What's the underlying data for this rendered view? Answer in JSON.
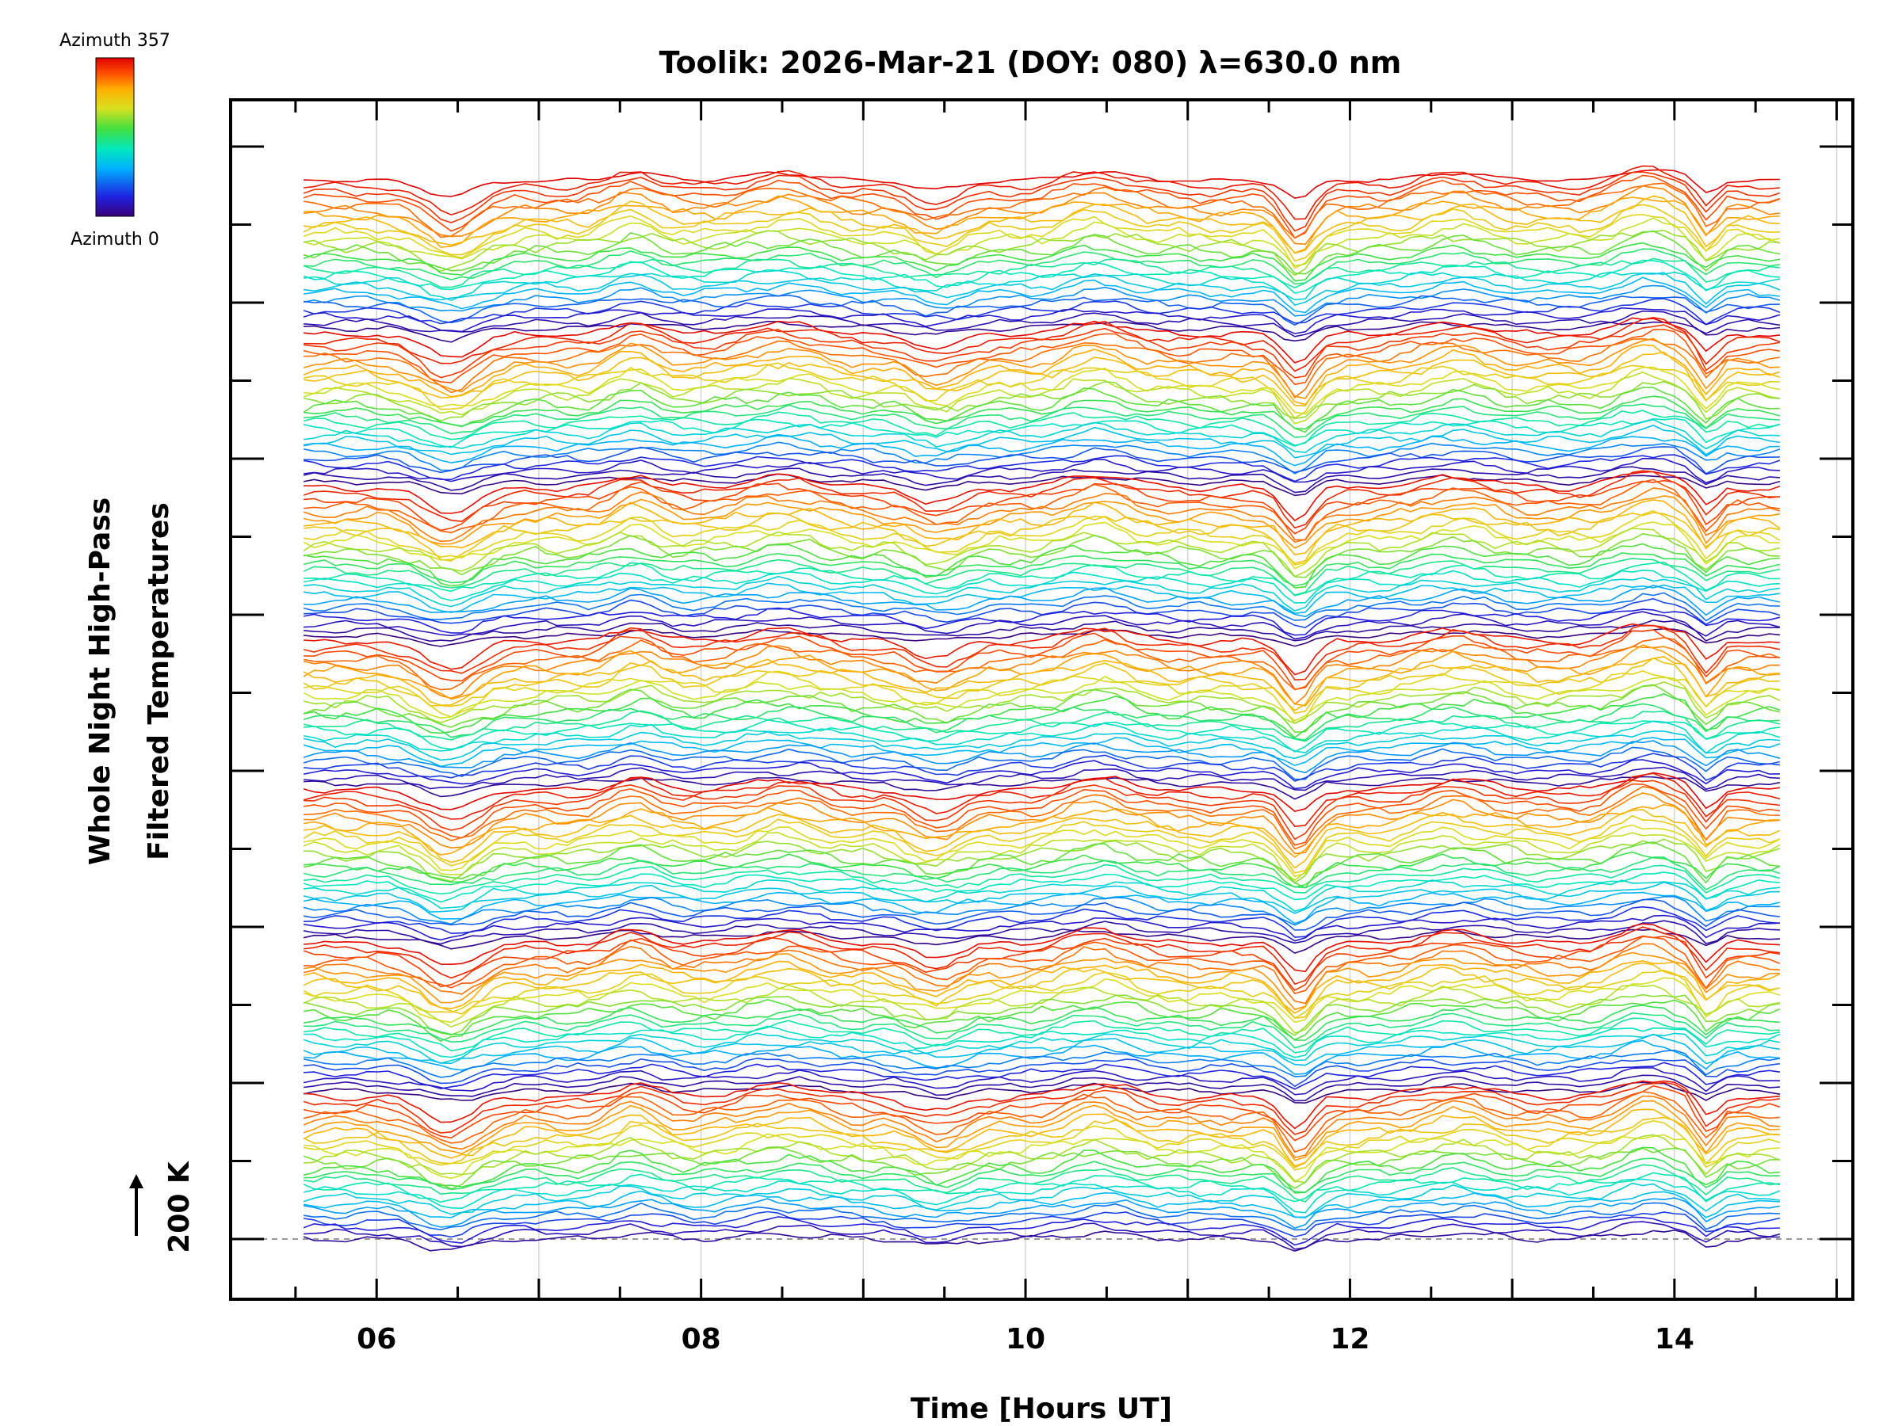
{
  "chart_data": {
    "type": "line",
    "title": "Toolik: 2026-Mar-21 (DOY: 080) λ=630.0 nm",
    "xlabel": "Time [Hours UT]",
    "ylabel_lines": [
      "Whole Night High-Pass",
      "Filtered Temperatures"
    ],
    "scale_label": "200 K",
    "xlim": [
      5.1,
      15.1
    ],
    "x_ticks": [
      6,
      8,
      10,
      12,
      14
    ],
    "x_tick_labels": [
      "06",
      "08",
      "10",
      "12",
      "14"
    ],
    "x_range_data": [
      5.55,
      14.65
    ],
    "grid": "vertical",
    "colorbar": {
      "top_label": "Azimuth 357",
      "bottom_label": "Azimuth 0",
      "position": "top-left",
      "colormap": [
        "#3a007a",
        "#2020e0",
        "#00b0ff",
        "#00e8c0",
        "#40e040",
        "#d8e020",
        "#ffb000",
        "#ff5000",
        "#e00000"
      ]
    },
    "baseline": "dashed",
    "series_count": 180,
    "series_groups": 7,
    "feature_times": [
      6.3,
      6.6,
      7.55,
      7.95,
      8.5,
      9.45,
      10.45,
      11.6,
      11.75,
      12.6,
      13.85,
      14.15
    ]
  }
}
